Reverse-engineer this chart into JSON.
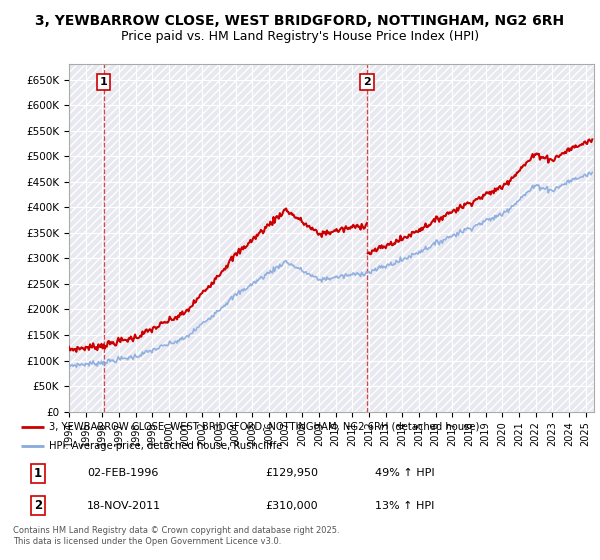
{
  "title_line1": "3, YEWBARROW CLOSE, WEST BRIDGFORD, NOTTINGHAM, NG2 6RH",
  "title_line2": "Price paid vs. HM Land Registry's House Price Index (HPI)",
  "ylim": [
    0,
    680000
  ],
  "xlim_start": 1994.0,
  "xlim_end": 2025.5,
  "ytick_labels": [
    "£0",
    "£50K",
    "£100K",
    "£150K",
    "£200K",
    "£250K",
    "£300K",
    "£350K",
    "£400K",
    "£450K",
    "£500K",
    "£550K",
    "£600K",
    "£650K"
  ],
  "ytick_values": [
    0,
    50000,
    100000,
    150000,
    200000,
    250000,
    300000,
    350000,
    400000,
    450000,
    500000,
    550000,
    600000,
    650000
  ],
  "property_color": "#cc0000",
  "hpi_color": "#88aadd",
  "vline_color": "#cc0000",
  "marker1_year": 1996.09,
  "marker1_label": "1",
  "marker1_value": 129950,
  "marker2_year": 2011.88,
  "marker2_label": "2",
  "marker2_value": 310000,
  "legend_property_label": "3, YEWBARROW CLOSE, WEST BRIDGFORD, NOTTINGHAM, NG2 6RH (detached house)",
  "legend_hpi_label": "HPI: Average price, detached house, Rushcliffe",
  "footnote": "Contains HM Land Registry data © Crown copyright and database right 2025.\nThis data is licensed under the Open Government Licence v3.0.",
  "background_color": "#ffffff",
  "plot_bg_color": "#e8e8f0",
  "grid_color": "#ffffff",
  "title_fontsize": 10,
  "subtitle_fontsize": 9
}
